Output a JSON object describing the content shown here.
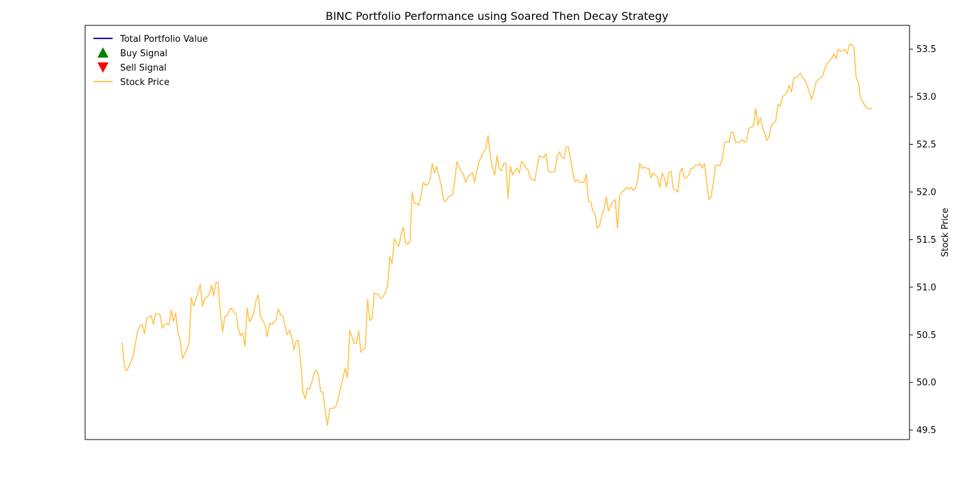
{
  "chart_data": {
    "type": "line",
    "title": "BINC Portfolio Performance using Soared Then Decay Strategy",
    "ylabel_right": "Stock Price",
    "ylim_right": [
      49.4,
      53.75
    ],
    "yticks_right": [
      49.5,
      50.0,
      50.5,
      51.0,
      51.5,
      52.0,
      52.5,
      53.0,
      53.5
    ],
    "ytick_labels_right": [
      "49.5",
      "50.0",
      "50.5",
      "51.0",
      "51.5",
      "52.0",
      "52.5",
      "53.0",
      "53.5"
    ],
    "x_ticks_shown": false,
    "grid": false,
    "legend_position": "top-left",
    "legend": [
      {
        "label": "Total Portfolio Value",
        "kind": "line",
        "color": "#0000cc"
      },
      {
        "label": "Buy Signal",
        "kind": "triangle-up",
        "color": "#008000"
      },
      {
        "label": "Sell Signal",
        "kind": "triangle-down",
        "color": "#ff0000"
      },
      {
        "label": "Stock Price",
        "kind": "line",
        "color": "#ffc34d"
      }
    ],
    "series": [
      {
        "name": "Stock Price",
        "color": "#ffc34d",
        "axis": "right",
        "values": [
          50.42,
          50.17,
          50.12,
          50.17,
          50.22,
          50.29,
          50.42,
          50.55,
          50.59,
          50.61,
          50.51,
          50.67,
          50.69,
          50.7,
          50.61,
          50.72,
          50.72,
          50.71,
          50.57,
          50.61,
          50.62,
          50.6,
          50.76,
          50.64,
          50.73,
          50.52,
          50.45,
          50.25,
          50.3,
          50.35,
          50.42,
          50.89,
          50.8,
          50.87,
          50.94,
          51.03,
          50.8,
          50.88,
          50.9,
          50.92,
          51.02,
          50.91,
          51.05,
          51.05,
          50.73,
          50.53,
          50.69,
          50.7,
          50.76,
          50.78,
          50.74,
          50.72,
          50.57,
          50.49,
          50.52,
          50.38,
          50.78,
          50.64,
          50.67,
          50.73,
          50.86,
          50.92,
          50.69,
          50.65,
          50.61,
          50.48,
          50.62,
          50.61,
          50.63,
          50.66,
          50.77,
          50.71,
          50.7,
          50.59,
          50.5,
          50.55,
          50.48,
          50.34,
          50.44,
          50.44,
          50.22,
          49.9,
          49.83,
          49.94,
          49.93,
          50.0,
          50.1,
          50.13,
          50.07,
          49.9,
          49.9,
          49.7,
          49.55,
          49.72,
          49.73,
          49.73,
          49.76,
          49.85,
          49.95,
          50.05,
          50.15,
          50.05,
          50.55,
          50.48,
          50.41,
          50.41,
          50.54,
          50.32,
          50.35,
          50.36,
          50.87,
          50.65,
          50.67,
          50.94,
          50.93,
          50.92,
          50.88,
          50.9,
          50.95,
          51.02,
          51.32,
          51.25,
          51.51,
          51.46,
          51.43,
          51.55,
          51.63,
          51.47,
          51.45,
          51.48,
          52.0,
          51.88,
          51.88,
          51.86,
          51.97,
          52.1,
          52.07,
          52.08,
          52.13,
          52.3,
          52.2,
          52.27,
          52.17,
          52.07,
          51.92,
          51.9,
          51.94,
          51.96,
          51.97,
          52.1,
          52.32,
          52.26,
          52.22,
          52.18,
          52.1,
          52.16,
          52.18,
          52.2,
          52.1,
          52.22,
          52.32,
          52.37,
          52.42,
          52.45,
          52.59,
          52.38,
          52.25,
          52.18,
          52.38,
          52.25,
          52.22,
          52.3,
          52.3,
          51.93,
          52.27,
          52.18,
          52.22,
          52.25,
          52.2,
          52.32,
          52.3,
          52.25,
          52.23,
          52.14,
          52.13,
          52.12,
          52.27,
          52.38,
          52.37,
          52.36,
          52.4,
          52.22,
          52.21,
          52.21,
          52.22,
          52.38,
          52.42,
          52.37,
          52.35,
          52.47,
          52.47,
          52.35,
          52.2,
          52.11,
          52.13,
          52.1,
          52.1,
          52.1,
          52.19,
          51.9,
          51.9,
          51.8,
          51.77,
          51.62,
          51.65,
          51.75,
          51.82,
          51.95,
          51.8,
          51.86,
          51.9,
          51.92,
          51.62,
          51.96,
          52.0,
          52.02,
          52.05,
          52.03,
          52.05,
          52.02,
          52.03,
          52.12,
          52.3,
          52.25,
          52.26,
          52.25,
          52.25,
          52.15,
          52.2,
          52.18,
          52.15,
          52.05,
          52.2,
          52.15,
          52.05,
          52.2,
          52.22,
          52.04,
          52.02,
          52.0,
          52.2,
          52.25,
          52.15,
          52.15,
          52.18,
          52.25,
          52.25,
          52.28,
          52.28,
          52.3,
          52.25,
          52.3,
          52.1,
          51.92,
          51.95,
          52.1,
          52.28,
          52.28,
          52.28,
          52.35,
          52.52,
          52.53,
          52.52,
          52.63,
          52.62,
          52.52,
          52.52,
          52.53,
          52.55,
          52.52,
          52.55,
          52.67,
          52.68,
          52.7,
          52.88,
          52.7,
          52.78,
          52.68,
          52.62,
          52.54,
          52.58,
          52.7,
          52.72,
          52.75,
          52.92,
          52.9,
          53.0,
          53.02,
          53.05,
          53.12,
          53.05,
          53.2,
          53.2,
          53.22,
          53.25,
          53.2,
          53.18,
          53.12,
          53.05,
          52.97,
          53.05,
          53.15,
          53.18,
          53.2,
          53.22,
          53.3,
          53.35,
          53.38,
          53.4,
          53.45,
          53.4,
          53.5,
          53.48,
          53.48,
          53.5,
          53.45,
          53.55,
          53.55,
          53.52,
          53.2,
          53.15,
          52.98,
          52.95,
          52.9,
          52.88,
          52.87,
          52.88
        ]
      }
    ]
  }
}
